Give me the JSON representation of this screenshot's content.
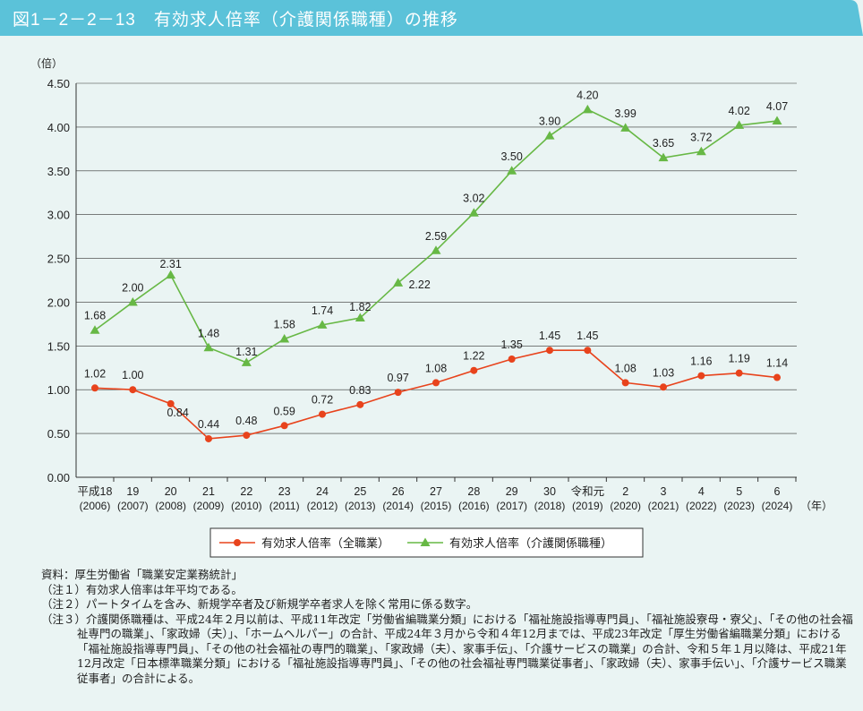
{
  "title": "図1－2－2－13　有効求人倍率（介護関係職種）の推移",
  "colors": {
    "header": "#5bc2d9",
    "all": "#e8431c",
    "care": "#67b845",
    "grid": "#333333",
    "background": "#eaf4f3"
  },
  "chart_data": {
    "type": "line",
    "ylabel": "（倍）",
    "xunit": "（年）",
    "ylim": [
      0,
      4.5
    ],
    "yticks": [
      "0.00",
      "0.50",
      "1.00",
      "1.50",
      "2.00",
      "2.50",
      "3.00",
      "3.50",
      "4.00",
      "4.50"
    ],
    "grid": true,
    "legend_placement": "bottom",
    "categories": [
      "平成18",
      "19",
      "20",
      "21",
      "22",
      "23",
      "24",
      "25",
      "26",
      "27",
      "28",
      "29",
      "30",
      "令和元",
      "2",
      "3",
      "4",
      "5",
      "6"
    ],
    "categories_sub": [
      "(2006)",
      "(2007)",
      "(2008)",
      "(2009)",
      "(2010)",
      "(2011)",
      "(2012)",
      "(2013)",
      "(2014)",
      "(2015)",
      "(2016)",
      "(2017)",
      "(2018)",
      "(2019)",
      "(2020)",
      "(2021)",
      "(2022)",
      "(2023)",
      "(2024)"
    ],
    "series": [
      {
        "name": "有効求人倍率（全職業）",
        "marker": "circle",
        "values": [
          1.02,
          1.0,
          0.84,
          0.44,
          0.48,
          0.59,
          0.72,
          0.83,
          0.97,
          1.08,
          1.22,
          1.35,
          1.45,
          1.45,
          1.08,
          1.03,
          1.16,
          1.19,
          1.14
        ]
      },
      {
        "name": "有効求人倍率（介護関係職種）",
        "marker": "triangle",
        "values": [
          1.68,
          2.0,
          2.31,
          1.48,
          1.31,
          1.58,
          1.74,
          1.82,
          2.22,
          2.59,
          3.02,
          3.5,
          3.9,
          4.2,
          3.99,
          3.65,
          3.72,
          4.02,
          4.07
        ]
      }
    ]
  },
  "notes": [
    "資料：厚生労働省「職業安定業務統計」",
    "（注１）有効求人倍率は年平均である。",
    "（注２）パートタイムを含み、新規学卒者及び新規学卒者求人を除く常用に係る数字。",
    "（注３）介護関係職種は、平成24年２月以前は、平成11年改定「労働省編職業分類」における「福祉施設指導専門員」、「福祉施設寮母・寮父」、「その他の社会福祉専門の職業」、「家政婦（夫）」、「ホームヘルパー」の合計、平成24年３月から令和４年12月までは、平成23年改定「厚生労働省編職業分類」における「福祉施設指導専門員」、「その他の社会福祉の専門的職業」、「家政婦（夫）、家事手伝」、「介護サービスの職業」の合計、令和５年１月以降は、平成21年12月改定「日本標準職業分類」における「福祉施設指導専門員」、「その他の社会福祉専門職業従事者」、「家政婦（夫）、家事手伝い」、「介護サービス職業従事者」の合計による。"
  ]
}
